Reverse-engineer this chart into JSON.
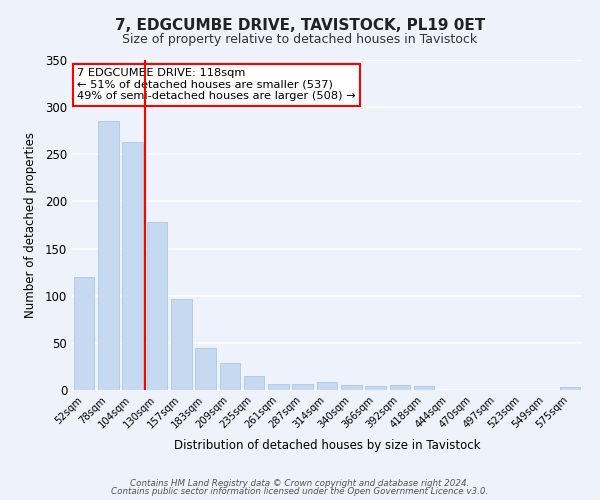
{
  "title": "7, EDGCUMBE DRIVE, TAVISTOCK, PL19 0ET",
  "subtitle": "Size of property relative to detached houses in Tavistock",
  "xlabel": "Distribution of detached houses by size in Tavistock",
  "ylabel": "Number of detached properties",
  "bar_color": "#c5d9f0",
  "bar_edge_color": "#a8c8e8",
  "bg_color": "#eef2fa",
  "grid_color": "#ffffff",
  "categories": [
    "52sqm",
    "78sqm",
    "104sqm",
    "130sqm",
    "157sqm",
    "183sqm",
    "209sqm",
    "235sqm",
    "261sqm",
    "287sqm",
    "314sqm",
    "340sqm",
    "366sqm",
    "392sqm",
    "418sqm",
    "444sqm",
    "470sqm",
    "497sqm",
    "523sqm",
    "549sqm",
    "575sqm"
  ],
  "values": [
    120,
    285,
    263,
    178,
    96,
    45,
    29,
    15,
    6,
    6,
    9,
    5,
    4,
    5,
    4,
    0,
    0,
    0,
    0,
    0,
    3
  ],
  "ylim": [
    0,
    350
  ],
  "yticks": [
    0,
    50,
    100,
    150,
    200,
    250,
    300,
    350
  ],
  "property_label": "7 EDGCUMBE DRIVE: 118sqm",
  "annotation_line1": "← 51% of detached houses are smaller (537)",
  "annotation_line2": "49% of semi-detached houses are larger (508) →",
  "vline_x_index": 2.5,
  "footnote1": "Contains HM Land Registry data © Crown copyright and database right 2024.",
  "footnote2": "Contains public sector information licensed under the Open Government Licence v3.0."
}
